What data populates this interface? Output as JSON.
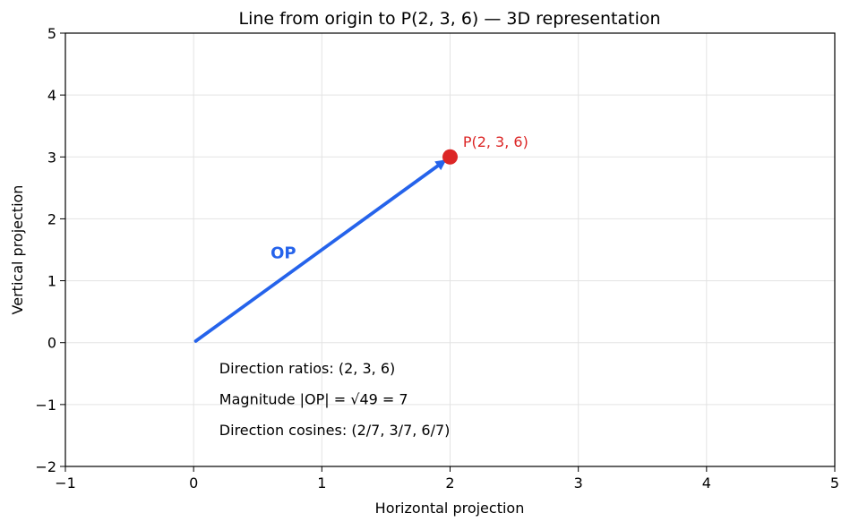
{
  "chart_data": {
    "type": "line",
    "title": "Line from origin to P(2, 3, 6) — 3D representation",
    "xlabel": "Horizontal projection",
    "ylabel": "Vertical projection",
    "xlim": [
      -1,
      5
    ],
    "ylim": [
      -2,
      5
    ],
    "xticks": [
      -1,
      0,
      1,
      2,
      3,
      4,
      5
    ],
    "yticks": [
      -2,
      -1,
      0,
      1,
      2,
      3,
      4,
      5
    ],
    "xtick_labels": [
      "−1",
      "0",
      "1",
      "2",
      "3",
      "4",
      "5"
    ],
    "ytick_labels": [
      "−2",
      "−1",
      "0",
      "1",
      "2",
      "3",
      "4",
      "5"
    ],
    "grid": true,
    "vector": {
      "label": "OP",
      "from": [
        0,
        0
      ],
      "to": [
        2,
        3
      ],
      "label_at": [
        0.6,
        1.45
      ],
      "color": "#2563eb"
    },
    "point": {
      "label": "P(2, 3, 6)",
      "x": 2,
      "y": 3,
      "label_at": [
        2.1,
        3.25
      ],
      "color": "#dc2626"
    },
    "annotations": [
      {
        "text": "Direction ratios: (2, 3, 6)",
        "x": 0.2,
        "y": -0.42
      },
      {
        "text": "Magnitude |OP| = √49 = 7",
        "x": 0.2,
        "y": -0.92
      },
      {
        "text": "Direction cosines: (2/7, 3/7, 6/7)",
        "x": 0.2,
        "y": -1.42
      }
    ]
  }
}
